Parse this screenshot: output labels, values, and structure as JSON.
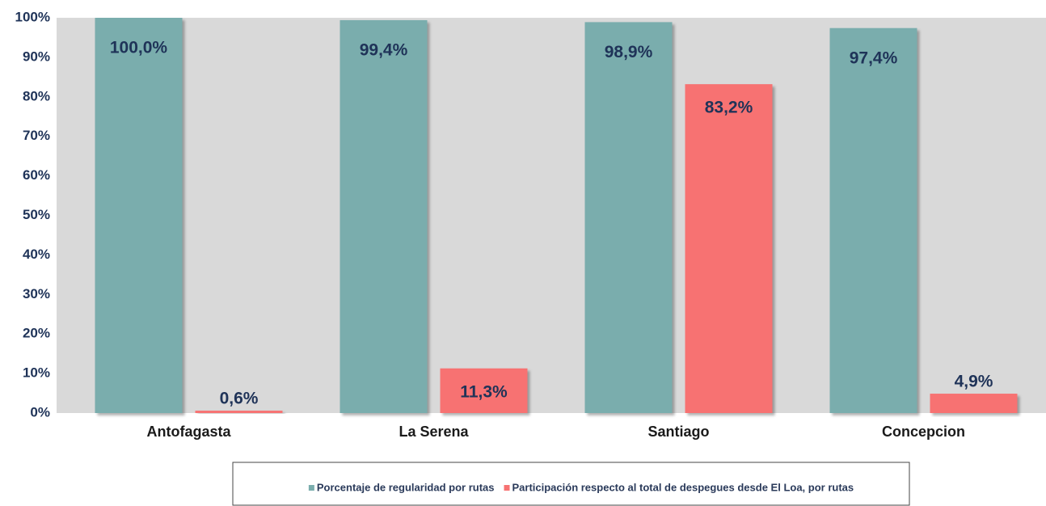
{
  "chart_data": {
    "type": "bar",
    "categories": [
      "Antofagasta",
      "La Serena",
      "Santiago",
      "Concepcion"
    ],
    "series": [
      {
        "name": "Porcentaje de regularidad por rutas",
        "color": "#7aadad",
        "values": [
          100,
          99.4,
          98.9,
          97.4
        ],
        "value_labels": [
          "100,0%",
          "99,4%",
          "98,9%",
          "97,4%"
        ]
      },
      {
        "name": "Participación respecto al total de despegues desde El Loa, por rutas",
        "color": "#f77272",
        "values": [
          0.6,
          11.3,
          83.2,
          4.9
        ],
        "value_labels": [
          "0,6%",
          "11,3%",
          "83,2%",
          "4,9%"
        ]
      }
    ],
    "ylim": [
      0,
      100
    ],
    "yticks": [
      {
        "value": 0,
        "label": "0%"
      },
      {
        "value": 10,
        "label": "10%"
      },
      {
        "value": 20,
        "label": "20%"
      },
      {
        "value": 30,
        "label": "30%"
      },
      {
        "value": 40,
        "label": "40%"
      },
      {
        "value": 50,
        "label": "50%"
      },
      {
        "value": 60,
        "label": "60%"
      },
      {
        "value": 70,
        "label": "70%"
      },
      {
        "value": 80,
        "label": "80%"
      },
      {
        "value": 90,
        "label": "90%"
      },
      {
        "value": 100,
        "label": "100%"
      }
    ],
    "legend": "bottom"
  }
}
